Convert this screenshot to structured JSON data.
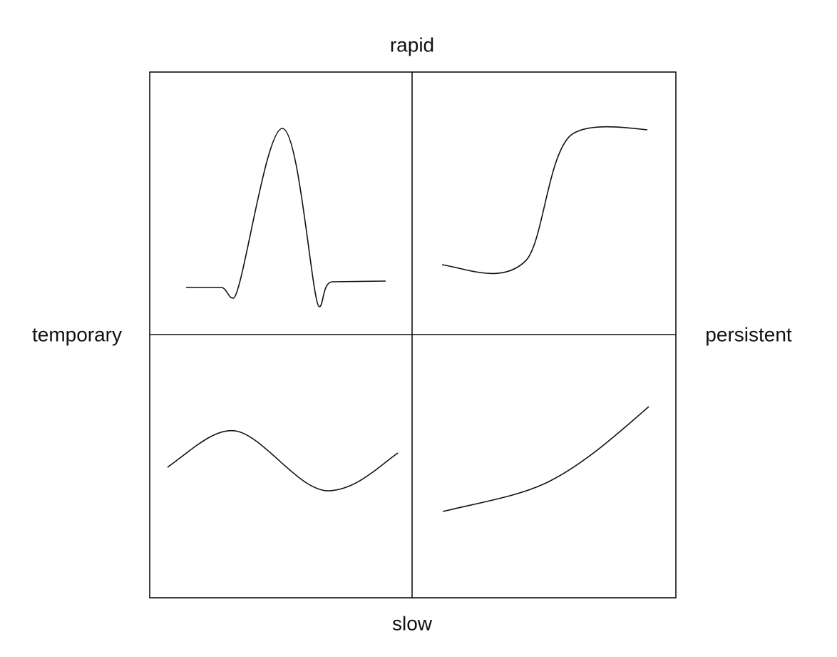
{
  "labels": {
    "top": "rapid",
    "bottom": "slow",
    "left": "temporary",
    "right": "persistent"
  }
}
